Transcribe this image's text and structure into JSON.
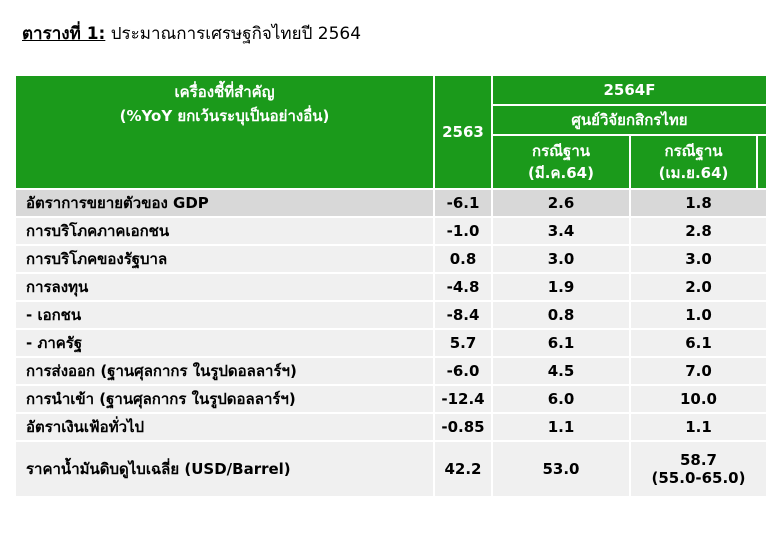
{
  "caption": {
    "label": "ตารางที่ 1:",
    "title": "ประมาณการเศรษฐกิจไทยปี 2564"
  },
  "header": {
    "indicator_line1": "เครื่องชี้ที่สำคัญ",
    "indicator_line2": "(%YoY ยกเว้นระบุเป็นอย่างอื่น)",
    "year_2563": "2563",
    "year_2564f": "2564F",
    "source": "ศูนย์วิจัยกสิกรไทย",
    "scenario_mar_line1": "กรณีฐาน",
    "scenario_mar_line2": "(มี.ค.64)",
    "scenario_apr_line1": "กรณีฐาน",
    "scenario_apr_line2": "(เม.ย.64)"
  },
  "rows": [
    {
      "indicator": "อัตราการขยายตัวของ GDP",
      "y2563": "-6.1",
      "mar64": "2.6",
      "apr64": "1.8"
    },
    {
      "indicator": "การบริโภคภาคเอกชน",
      "y2563": "-1.0",
      "mar64": "3.4",
      "apr64": "2.8"
    },
    {
      "indicator": "การบริโภคของรัฐบาล",
      "y2563": "0.8",
      "mar64": "3.0",
      "apr64": "3.0"
    },
    {
      "indicator": "การลงทุน",
      "y2563": "-4.8",
      "mar64": "1.9",
      "apr64": "2.0"
    },
    {
      "indicator": " - เอกชน",
      "y2563": "-8.4",
      "mar64": "0.8",
      "apr64": "1.0"
    },
    {
      "indicator": " - ภาครัฐ",
      "y2563": "5.7",
      "mar64": "6.1",
      "apr64": "6.1"
    },
    {
      "indicator": "การส่งออก (ฐานศุลกากร ในรูปดอลลาร์ฯ)",
      "y2563": "-6.0",
      "mar64": "4.5",
      "apr64": "7.0"
    },
    {
      "indicator": "การนำเข้า (ฐานศุลกากร ในรูปดอลลาร์ฯ)",
      "y2563": "-12.4",
      "mar64": "6.0",
      "apr64": "10.0"
    },
    {
      "indicator": "อัตราเงินเฟ้อทั่วไป",
      "y2563": "-0.85",
      "mar64": "1.1",
      "apr64": "1.1"
    },
    {
      "indicator": "ราคาน้ำมันดิบดูไบเฉลี่ย (USD/Barrel)",
      "y2563": "42.2",
      "mar64": "53.0",
      "apr64": "58.7",
      "apr64_range": "(55.0-65.0)"
    }
  ],
  "colors": {
    "header_bg": "#1b9a1b",
    "row_bg": "#f0f0f0",
    "first_row_bg": "#d8d8d8"
  }
}
